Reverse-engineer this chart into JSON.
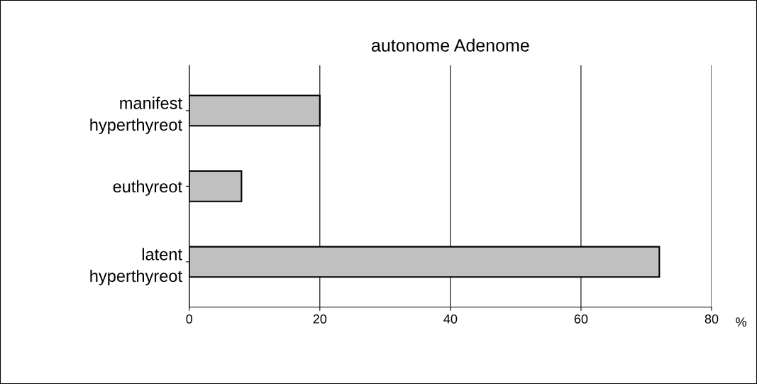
{
  "chart_data": {
    "type": "bar",
    "orientation": "horizontal",
    "title": "autonome Adenome",
    "xlabel": "%",
    "categories": [
      "manifest hyperthyreot",
      "euthyreot",
      "latent hyperthyreot"
    ],
    "values": [
      20,
      8,
      72
    ],
    "color": "#c0c0c0",
    "xlim": [
      0,
      80
    ],
    "xticks": [
      0,
      20,
      40,
      60,
      80
    ],
    "grid": "x"
  }
}
